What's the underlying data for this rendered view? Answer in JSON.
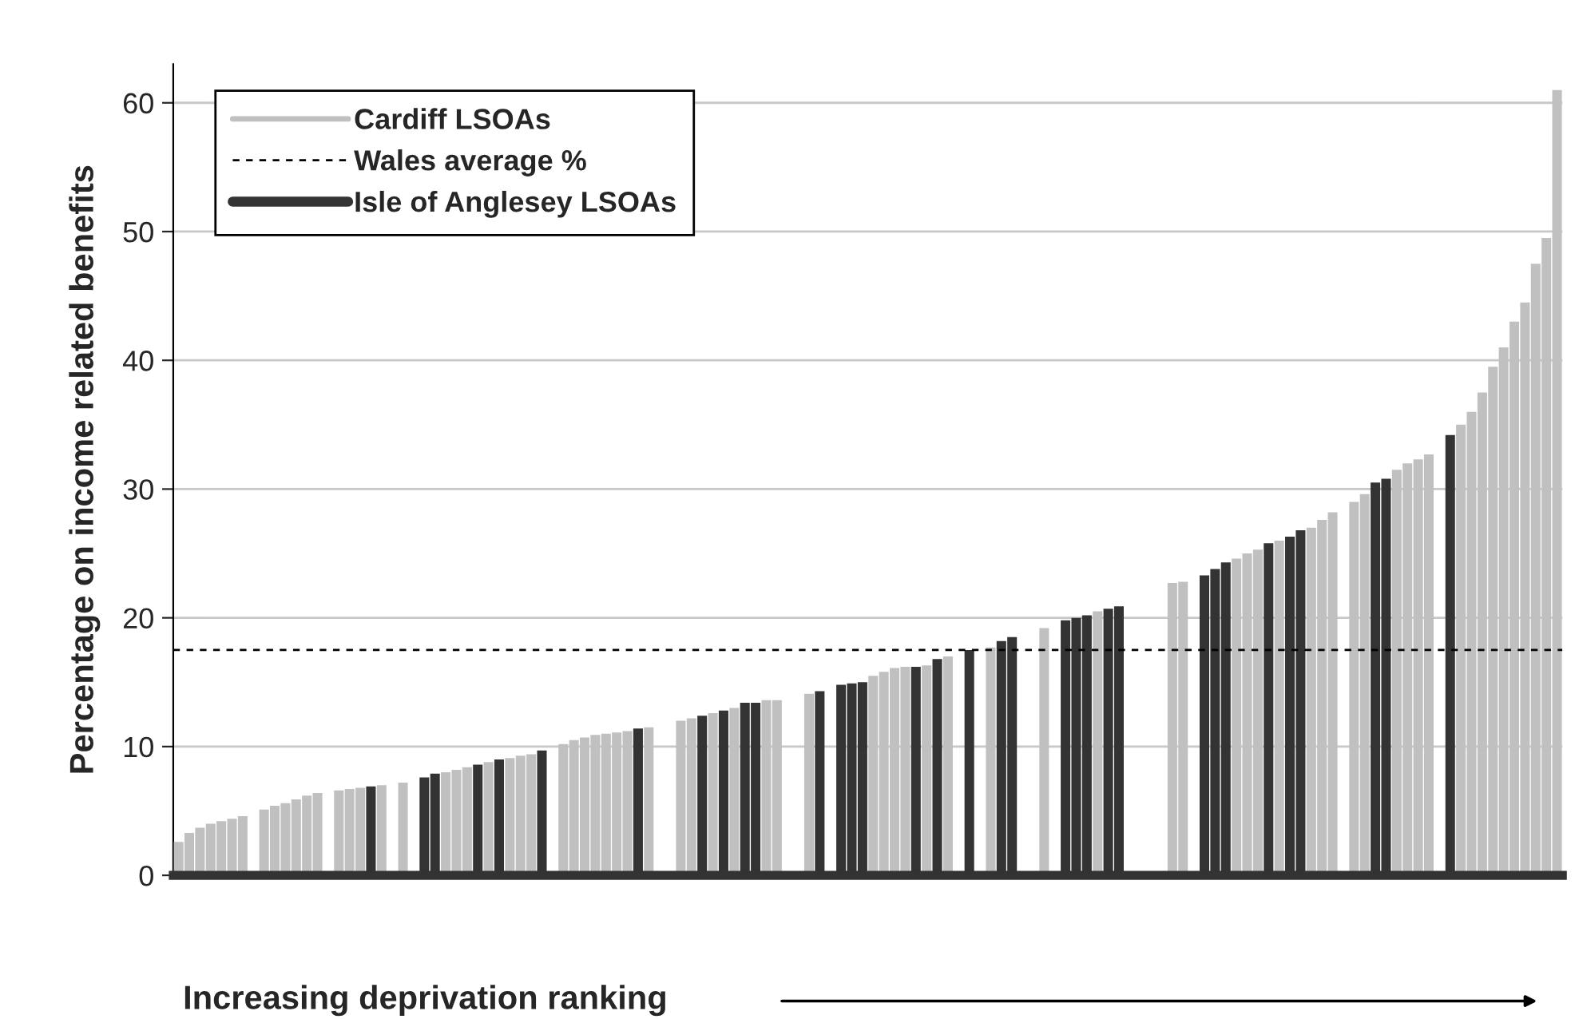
{
  "chart_data": {
    "type": "bar",
    "ylabel": "Percentage on income related benefits",
    "xlabel": "Increasing deprivation ranking",
    "categories": [
      null,
      null,
      null,
      null,
      null,
      null,
      null,
      null,
      null,
      null,
      null,
      null,
      null,
      null,
      null,
      null,
      null,
      null,
      null,
      null,
      null,
      null,
      null,
      null,
      null,
      null,
      null,
      null,
      null,
      null,
      null,
      null,
      null,
      null,
      null,
      null,
      null,
      null,
      null,
      null,
      null,
      null,
      null,
      null,
      null,
      null,
      null,
      null,
      null,
      null,
      null,
      null,
      null,
      null,
      null,
      null,
      null,
      null,
      null,
      null,
      null,
      null,
      null,
      null,
      null,
      null,
      null,
      null,
      null,
      null,
      null,
      null,
      null,
      null,
      null,
      null,
      null,
      null,
      null,
      null,
      null,
      null,
      null,
      null,
      null,
      null,
      null,
      null,
      null,
      null,
      null,
      null,
      null,
      null,
      null,
      null,
      null,
      null,
      null,
      null,
      null,
      null,
      null,
      null,
      null,
      null,
      null,
      null,
      null,
      null,
      null,
      null,
      null,
      null,
      null,
      null,
      null,
      null,
      null,
      null,
      null,
      null,
      null,
      null,
      null,
      null,
      null,
      null,
      null,
      null
    ],
    "series": [
      {
        "name": "Cardiff LSOAs",
        "color": "#c0c0c0",
        "values": [
          2.6,
          3.3,
          3.7,
          4.0,
          4.2,
          4.4,
          4.6,
          null,
          5.1,
          5.4,
          5.6,
          5.9,
          6.2,
          6.4,
          null,
          6.6,
          6.7,
          6.8,
          null,
          7.0,
          null,
          7.2,
          null,
          null,
          null,
          8.0,
          8.2,
          8.4,
          null,
          8.8,
          null,
          9.1,
          9.3,
          9.4,
          null,
          null,
          10.2,
          10.5,
          10.7,
          10.9,
          11.0,
          11.1,
          11.2,
          null,
          11.5,
          null,
          null,
          12.0,
          12.2,
          null,
          12.6,
          null,
          13.0,
          null,
          null,
          13.6,
          13.6,
          null,
          null,
          14.1,
          null,
          null,
          null,
          null,
          null,
          15.5,
          15.8,
          16.1,
          16.2,
          null,
          16.3,
          null,
          17.0,
          null,
          null,
          null,
          17.7,
          null,
          null,
          null,
          null,
          19.2,
          null,
          null,
          null,
          null,
          20.5,
          null,
          null,
          null,
          null,
          null,
          null,
          22.7,
          22.8,
          null,
          null,
          null,
          null,
          24.6,
          25.0,
          25.3,
          null,
          26.0,
          null,
          null,
          27.0,
          27.6,
          28.2,
          null,
          29.0,
          29.6,
          null,
          null,
          31.5,
          32.0,
          32.3,
          32.7,
          null,
          null,
          35.0,
          36.0,
          37.5,
          39.5,
          41.0,
          43.0,
          44.5,
          47.5,
          49.5,
          61.0
        ]
      },
      {
        "name": "Isle of Anglesey LSOAs",
        "color": "#333333",
        "values": [
          null,
          null,
          null,
          null,
          null,
          null,
          null,
          null,
          null,
          null,
          null,
          null,
          null,
          null,
          null,
          null,
          null,
          null,
          6.9,
          null,
          null,
          null,
          null,
          7.6,
          7.9,
          null,
          null,
          null,
          8.6,
          null,
          9.0,
          null,
          null,
          null,
          9.7,
          null,
          null,
          null,
          null,
          null,
          null,
          null,
          null,
          11.4,
          null,
          null,
          null,
          null,
          null,
          12.4,
          null,
          12.8,
          null,
          13.4,
          13.4,
          null,
          null,
          null,
          null,
          null,
          14.3,
          null,
          14.8,
          14.9,
          15.0,
          null,
          null,
          null,
          null,
          16.2,
          null,
          16.8,
          null,
          null,
          17.5,
          null,
          null,
          18.2,
          18.5,
          null,
          null,
          null,
          null,
          19.8,
          20.0,
          20.2,
          null,
          20.7,
          20.9,
          null,
          null,
          null,
          null,
          null,
          null,
          null,
          23.3,
          23.8,
          24.3,
          null,
          null,
          null,
          25.8,
          null,
          26.3,
          26.8,
          null,
          null,
          null,
          null,
          null,
          null,
          30.5,
          30.8,
          null,
          null,
          null,
          null,
          null,
          34.2,
          null,
          null,
          null,
          null,
          null,
          null,
          null,
          null,
          null,
          null
        ]
      }
    ],
    "ref_lines": [
      {
        "axis": "y",
        "value": 17.5,
        "label": "Wales average %",
        "color": "#000000",
        "line_style": "dashed"
      }
    ],
    "ylim": [
      0,
      63
    ],
    "yticks": [
      0,
      10,
      20,
      30,
      40,
      50,
      60
    ],
    "grid": "y",
    "legend": "top left",
    "tick_labels": "y"
  }
}
